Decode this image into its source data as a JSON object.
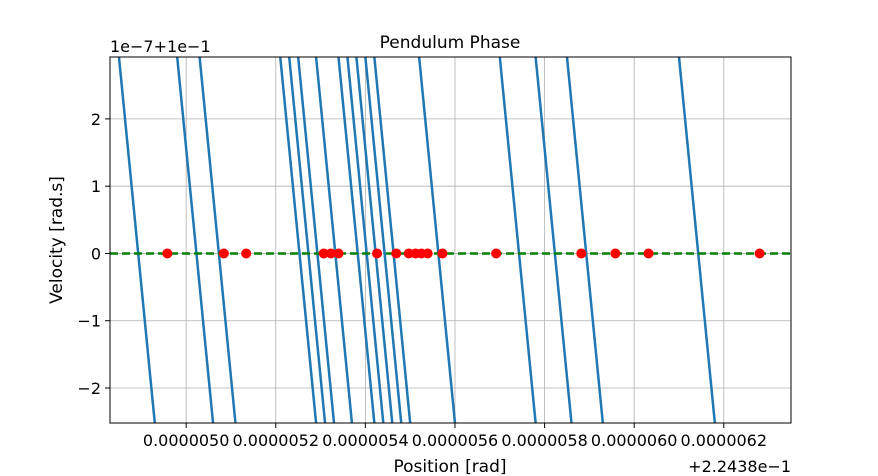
{
  "chart_data": {
    "type": "line",
    "title": "Pendulum Phase",
    "xlabel": "Position [rad]",
    "ylabel": "Velocity [rad.s]",
    "x_offset_label": "+2.2438e−1",
    "y_offset_label": "1e−7+1e−1",
    "x_ticks": [
      {
        "value": 5e-06,
        "label": "0.0000050"
      },
      {
        "value": 5.2e-06,
        "label": "0.0000052"
      },
      {
        "value": 5.4e-06,
        "label": "0.0000054"
      },
      {
        "value": 5.6e-06,
        "label": "0.0000056"
      },
      {
        "value": 5.8e-06,
        "label": "0.0000058"
      },
      {
        "value": 6e-06,
        "label": "0.0000060"
      },
      {
        "value": 6.2e-06,
        "label": "0.0000062"
      }
    ],
    "y_ticks": [
      {
        "value": 2,
        "label": "2"
      },
      {
        "value": 1,
        "label": "1"
      },
      {
        "value": 0,
        "label": "0"
      },
      {
        "value": -1,
        "label": "−1"
      },
      {
        "value": -2,
        "label": "−2"
      }
    ],
    "xlim": [
      4.83e-06,
      6.35e-06
    ],
    "ylim": [
      -2.52,
      2.92
    ],
    "grid": true,
    "line_color": "#1f77b4",
    "zero_line_color": "#008000",
    "marker_color": "#ff0000",
    "series": [
      {
        "values": [
          [
            4.85e-06,
            2.92
          ],
          [
            4.93e-06,
            -2.52
          ]
        ]
      },
      {
        "values": [
          [
            4.98e-06,
            2.92
          ],
          [
            5.06e-06,
            -2.52
          ]
        ]
      },
      {
        "values": [
          [
            5.03e-06,
            2.92
          ],
          [
            5.11e-06,
            -2.52
          ]
        ]
      },
      {
        "values": [
          [
            5.21e-06,
            2.92
          ],
          [
            5.29e-06,
            -2.52
          ]
        ]
      },
      {
        "values": [
          [
            5.23e-06,
            2.92
          ],
          [
            5.31e-06,
            -2.52
          ]
        ]
      },
      {
        "values": [
          [
            5.25e-06,
            2.92
          ],
          [
            5.33e-06,
            -2.52
          ]
        ]
      },
      {
        "values": [
          [
            5.29e-06,
            2.92
          ],
          [
            5.37e-06,
            -2.52
          ]
        ]
      },
      {
        "values": [
          [
            5.34e-06,
            2.92
          ],
          [
            5.42e-06,
            -2.52
          ]
        ]
      },
      {
        "values": [
          [
            5.36e-06,
            2.92
          ],
          [
            5.44e-06,
            -2.52
          ]
        ]
      },
      {
        "values": [
          [
            5.38e-06,
            2.92
          ],
          [
            5.46e-06,
            -2.52
          ]
        ]
      },
      {
        "values": [
          [
            5.4e-06,
            2.92
          ],
          [
            5.48e-06,
            -2.52
          ]
        ]
      },
      {
        "values": [
          [
            5.42e-06,
            2.92
          ],
          [
            5.5e-06,
            -2.52
          ]
        ]
      },
      {
        "values": [
          [
            5.52e-06,
            2.92
          ],
          [
            5.6e-06,
            -2.52
          ]
        ]
      },
      {
        "values": [
          [
            5.7e-06,
            2.92
          ],
          [
            5.78e-06,
            -2.52
          ]
        ]
      },
      {
        "values": [
          [
            5.78e-06,
            2.92
          ],
          [
            5.86e-06,
            -2.52
          ]
        ]
      },
      {
        "values": [
          [
            5.85e-06,
            2.92
          ],
          [
            5.93e-06,
            -2.52
          ]
        ]
      },
      {
        "values": [
          [
            6.1e-06,
            2.92
          ],
          [
            6.18e-06,
            -2.52
          ]
        ]
      }
    ],
    "points": [
      {
        "x": 4.958e-06,
        "y": 0
      },
      {
        "x": 5.084e-06,
        "y": 0
      },
      {
        "x": 5.134e-06,
        "y": 0
      },
      {
        "x": 5.307e-06,
        "y": 0
      },
      {
        "x": 5.323e-06,
        "y": 0
      },
      {
        "x": 5.34e-06,
        "y": 0
      },
      {
        "x": 5.426e-06,
        "y": 0
      },
      {
        "x": 5.469e-06,
        "y": 0
      },
      {
        "x": 5.497e-06,
        "y": 0
      },
      {
        "x": 5.512e-06,
        "y": 0
      },
      {
        "x": 5.525e-06,
        "y": 0
      },
      {
        "x": 5.539e-06,
        "y": 0
      },
      {
        "x": 5.572e-06,
        "y": 0
      },
      {
        "x": 5.692e-06,
        "y": 0
      },
      {
        "x": 5.882e-06,
        "y": 0
      },
      {
        "x": 5.958e-06,
        "y": 0
      },
      {
        "x": 6.032e-06,
        "y": 0
      },
      {
        "x": 6.28e-06,
        "y": 0
      }
    ]
  }
}
